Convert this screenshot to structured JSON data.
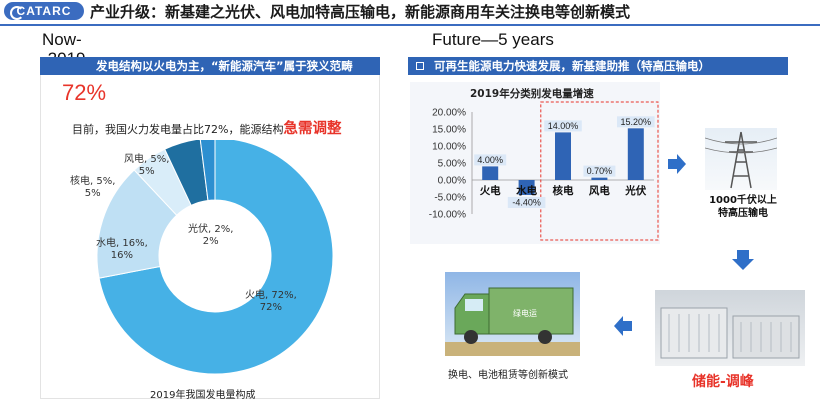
{
  "header": {
    "logo_text": "CATARC",
    "title": "产业升级：新基建之光伏、风电加特高压输电，新能源商用车关注换电等创新模式"
  },
  "left": {
    "heading": "Now--2019",
    "banner": "发电结构以火电为主，“新能源汽车”属于狭义范畴",
    "big_pct": "72%",
    "desc_prefix": "目前，我国火力发电量占比72%，能源结构",
    "desc_emph": "急需调整",
    "caption": "2019年我国发电量构成",
    "colors": {
      "fire": "#46b1e6",
      "water": "#bfe0f4",
      "nuclear": "#d9edf9",
      "wind": "#1f6fa0",
      "solar": "#2d8fd0"
    },
    "pie": [
      {
        "name": "火电",
        "line1": "火电, 72%,",
        "line2": "72%",
        "value": 72
      },
      {
        "name": "水电",
        "line1": "水电, 16%,",
        "line2": "16%",
        "value": 16
      },
      {
        "name": "核电",
        "line1": "核电, 5%,",
        "line2": "5%",
        "value": 5
      },
      {
        "name": "风电",
        "line1": "风电, 5%,",
        "line2": "5%",
        "value": 5
      },
      {
        "name": "光伏",
        "line1": "光伏, 2%,",
        "line2": "2%",
        "value": 2
      }
    ]
  },
  "right": {
    "heading": "Future—5 years",
    "banner": "可再生能源电力快速发展，新基建助推（特高压输电）",
    "tower_caption_1": "1000千伏以上",
    "tower_caption_2": "特高压输电",
    "storage_caption": "储能-调峰",
    "truck_caption": "换电、电池租赁等创新模式",
    "truck_label": "绿电运"
  },
  "chart_data": {
    "type": "bar",
    "title": "2019年分类别发电量增速",
    "categories": [
      "火电",
      "水电",
      "核电",
      "风电",
      "光伏"
    ],
    "values": [
      4.0,
      -4.4,
      14.0,
      0.7,
      15.2
    ],
    "data_labels": [
      "4.00%",
      "-4.40%",
      "14.00%",
      "0.70%",
      "15.20%"
    ],
    "yticks": [
      "20.00%",
      "15.00%",
      "10.00%",
      "5.00%",
      "0.00%",
      "-5.00%",
      "-10.00%"
    ],
    "ylim": [
      -10,
      20
    ],
    "bar_color": "#2f64b5",
    "label_bg": "#dbe8f7",
    "highlight": [
      "核电",
      "光伏"
    ],
    "highlight_color": "#e8342a"
  }
}
